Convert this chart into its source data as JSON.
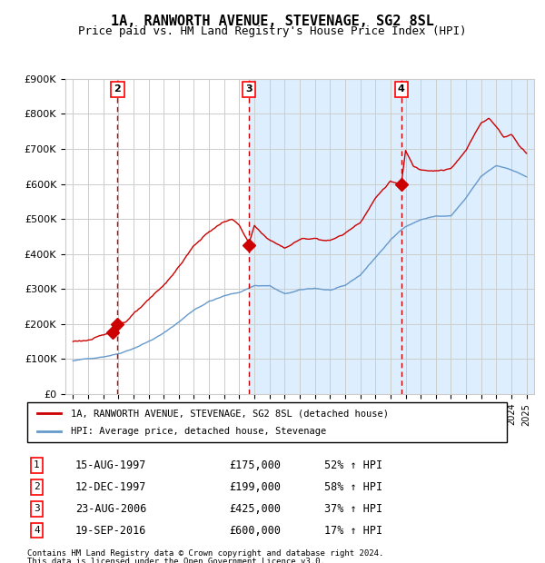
{
  "title": "1A, RANWORTH AVENUE, STEVENAGE, SG2 8SL",
  "subtitle": "Price paid vs. HM Land Registry's House Price Index (HPI)",
  "legend_line1": "1A, RANWORTH AVENUE, STEVENAGE, SG2 8SL (detached house)",
  "legend_line2": "HPI: Average price, detached house, Stevenage",
  "footer1": "Contains HM Land Registry data © Crown copyright and database right 2024.",
  "footer2": "This data is licensed under the Open Government Licence v3.0.",
  "transactions": [
    {
      "num": 1,
      "date": "15-AUG-1997",
      "price": 175000,
      "pct": "52%",
      "x": 1997.62
    },
    {
      "num": 2,
      "date": "12-DEC-1997",
      "price": 199000,
      "pct": "58%",
      "x": 1997.95
    },
    {
      "num": 3,
      "date": "23-AUG-2006",
      "price": 425000,
      "pct": "37%",
      "x": 2006.64
    },
    {
      "num": 4,
      "date": "19-SEP-2016",
      "price": 600000,
      "pct": "17%",
      "x": 2016.72
    }
  ],
  "vline_dates": [
    1997.95,
    2006.64,
    2016.72
  ],
  "shade_start": 2006.64,
  "shade_end": 2025.5,
  "red_color": "#cc0000",
  "blue_color": "#6699cc",
  "shade_color": "#ddeeff",
  "vline_color": "#cc0000",
  "grid_color": "#cccccc",
  "background_color": "#ffffff",
  "ylim": [
    0,
    900000
  ],
  "xlim_start": 1994.5,
  "xlim_end": 2025.5
}
